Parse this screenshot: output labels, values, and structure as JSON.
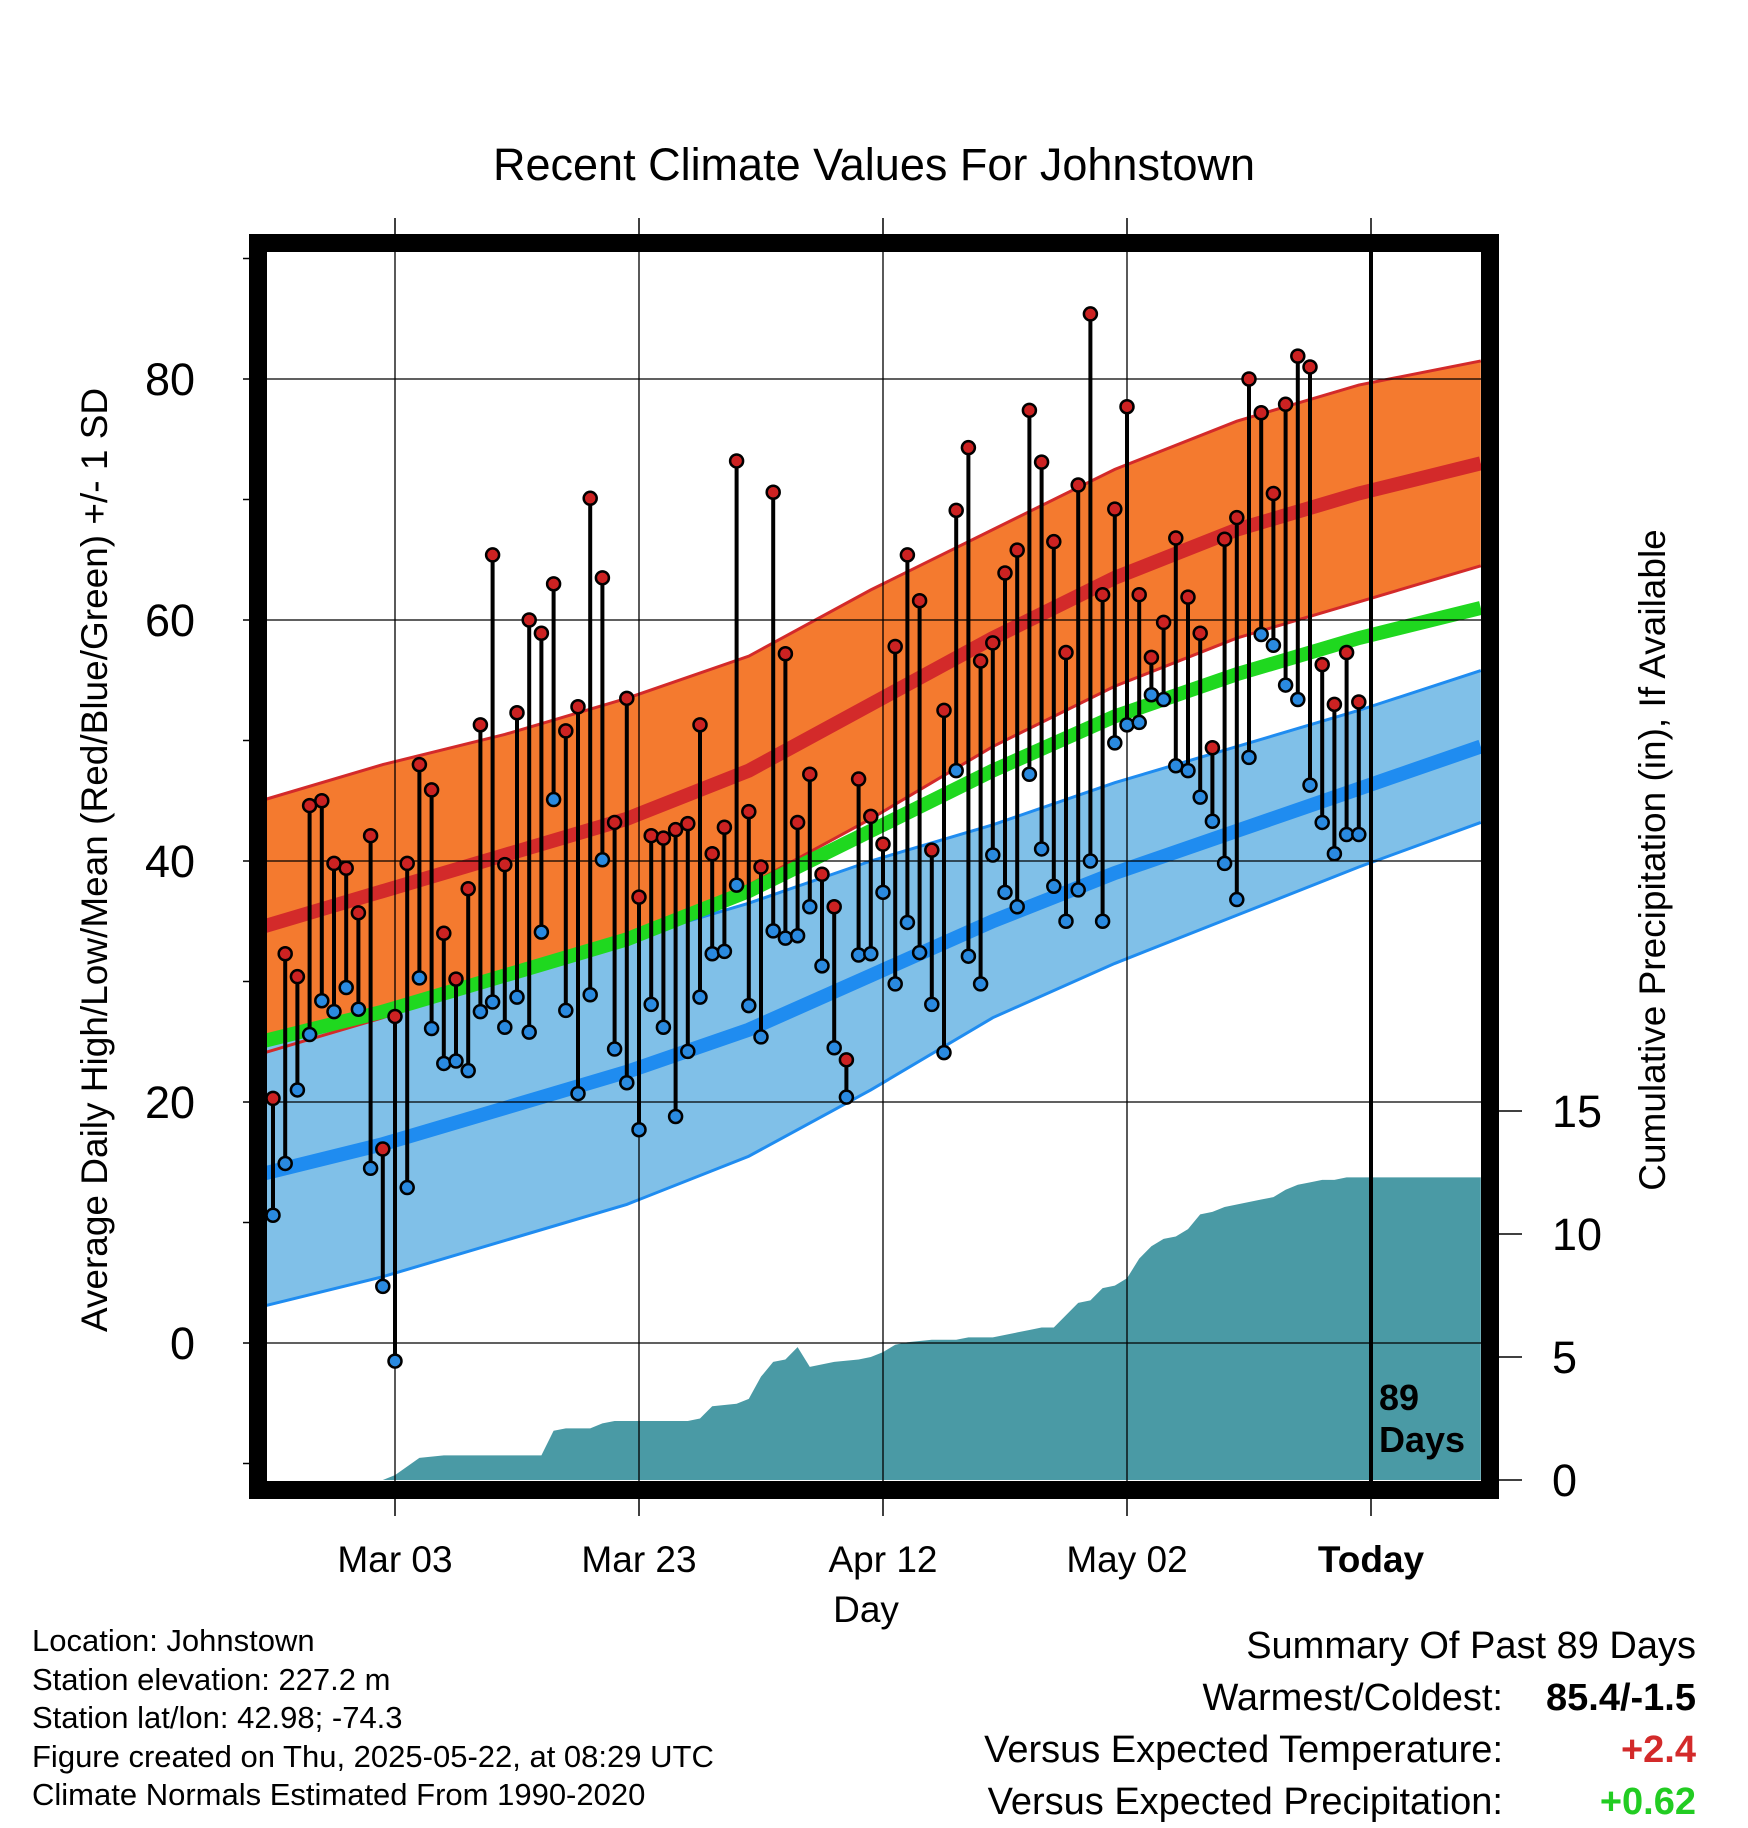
{
  "chart_data": {
    "type": "line",
    "title": "Recent Climate Values For Johnstown",
    "xlabel": "Day",
    "ylabel": "Average Daily High/Low/Mean (Red/Blue/Green) +/- 1 SD",
    "y2label": "Cumulative Precipitation (in), If Available",
    "ylim": [
      -10.5,
      90
    ],
    "y2lim": [
      0,
      45
    ],
    "xlim": [
      -11,
      89
    ],
    "x_ticks": [
      {
        "day": 0,
        "label": "Mar 03"
      },
      {
        "day": 20,
        "label": "Mar 23"
      },
      {
        "day": 40,
        "label": "Apr 12"
      },
      {
        "day": 60,
        "label": "May 02"
      },
      {
        "day": 80,
        "label": "Today"
      }
    ],
    "y_ticks": [
      0,
      20,
      40,
      60,
      80
    ],
    "y2_ticks": [
      0,
      5,
      10,
      15
    ],
    "today_label": [
      "89",
      "Days"
    ],
    "colors": {
      "high_band": "#f47a2f",
      "high_mean": "#d32a2a",
      "high_edge": "#d32a2a",
      "low_band": "#80c0e8",
      "low_mean": "#1f8cf0",
      "low_edge": "#1f8cf0",
      "mean": "#1fd81f",
      "precip": "#4a9aa5",
      "high_point": "#cc2222",
      "low_point": "#2a8ae0",
      "positive": "#d32a2a",
      "precip_anom": "#22cc22"
    },
    "normals": {
      "days": [
        -11,
        -1,
        9,
        19,
        29,
        39,
        49,
        59,
        69,
        79,
        89
      ],
      "high_mean": [
        34.5,
        37.5,
        40.5,
        43.5,
        47.5,
        53.0,
        58.5,
        63.5,
        67.5,
        70.5,
        73.0
      ],
      "high_sd": [
        10.5,
        10.5,
        10.0,
        10.0,
        9.5,
        9.5,
        9.0,
        9.0,
        9.0,
        9.0,
        8.5
      ],
      "low_mean": [
        14.0,
        16.5,
        19.5,
        22.5,
        26.0,
        30.5,
        35.0,
        39.0,
        42.5,
        46.0,
        49.5
      ],
      "low_sd": [
        11.0,
        11.0,
        11.0,
        11.0,
        10.5,
        9.5,
        8.0,
        7.5,
        7.0,
        6.5,
        6.3
      ],
      "mean": [
        25.0,
        27.5,
        30.5,
        33.5,
        37.5,
        42.5,
        47.5,
        52.0,
        55.5,
        58.5,
        61.0
      ]
    },
    "series": [
      {
        "name": "High",
        "x": [
          -10,
          -9,
          -8,
          -7,
          -6,
          -5,
          -4,
          -3,
          -2,
          -1,
          0,
          1,
          2,
          3,
          4,
          5,
          6,
          7,
          8,
          9,
          10,
          11,
          12,
          13,
          14,
          15,
          16,
          17,
          18,
          19,
          20,
          21,
          22,
          23,
          24,
          25,
          26,
          27,
          28,
          29,
          30,
          31,
          32,
          33,
          34,
          35,
          36,
          37,
          38,
          39,
          40,
          41,
          42,
          43,
          44,
          45,
          46,
          47,
          48,
          49,
          50,
          51,
          52,
          53,
          54,
          55,
          56,
          57,
          58,
          59,
          60,
          61,
          62,
          63,
          64,
          65,
          66,
          67,
          68,
          69,
          70,
          71,
          72,
          73,
          74,
          75,
          76,
          77,
          78,
          79
        ],
        "values": [
          20.3,
          32.3,
          30.4,
          44.6,
          45.0,
          39.8,
          39.4,
          35.7,
          42.1,
          16.1,
          27.1,
          39.8,
          48.0,
          45.9,
          34.0,
          30.2,
          37.7,
          51.3,
          65.4,
          39.7,
          52.3,
          60.0,
          58.9,
          63.0,
          50.8,
          52.8,
          70.1,
          63.5,
          43.2,
          53.5,
          37.0,
          42.1,
          41.9,
          42.6,
          43.1,
          51.3,
          40.6,
          42.8,
          73.2,
          44.1,
          39.5,
          70.6,
          57.2,
          43.2,
          47.2,
          38.9,
          36.2,
          23.5,
          46.8,
          43.7,
          41.4,
          57.8,
          65.4,
          61.6,
          40.9,
          52.5,
          69.1,
          74.3,
          56.6,
          58.1,
          63.9,
          65.8,
          77.4,
          73.1,
          66.5,
          57.3,
          71.2,
          85.4,
          62.1,
          69.2,
          77.7,
          62.1,
          56.9,
          59.8,
          66.8,
          61.9,
          58.9,
          49.4,
          66.7,
          68.5,
          80.0,
          77.2,
          70.5,
          77.9,
          81.9,
          81.0,
          56.3,
          53.0,
          57.3,
          53.2
        ]
      },
      {
        "name": "Low",
        "x": [
          -10,
          -9,
          -8,
          -7,
          -6,
          -5,
          -4,
          -3,
          -2,
          -1,
          0,
          1,
          2,
          3,
          4,
          5,
          6,
          7,
          8,
          9,
          10,
          11,
          12,
          13,
          14,
          15,
          16,
          17,
          18,
          19,
          20,
          21,
          22,
          23,
          24,
          25,
          26,
          27,
          28,
          29,
          30,
          31,
          32,
          33,
          34,
          35,
          36,
          37,
          38,
          39,
          40,
          41,
          42,
          43,
          44,
          45,
          46,
          47,
          48,
          49,
          50,
          51,
          52,
          53,
          54,
          55,
          56,
          57,
          58,
          59,
          60,
          61,
          62,
          63,
          64,
          65,
          66,
          67,
          68,
          69,
          70,
          71,
          72,
          73,
          74,
          75,
          76,
          77,
          78,
          79
        ],
        "values": [
          10.6,
          14.9,
          21.0,
          25.6,
          28.4,
          27.5,
          29.5,
          27.7,
          14.5,
          4.7,
          -1.5,
          12.9,
          30.3,
          26.1,
          23.2,
          23.4,
          22.6,
          27.5,
          28.3,
          26.2,
          28.7,
          25.8,
          34.1,
          45.1,
          27.6,
          20.7,
          28.9,
          40.1,
          24.4,
          21.6,
          17.7,
          28.1,
          26.2,
          18.8,
          24.2,
          28.7,
          32.3,
          32.5,
          38.0,
          28.0,
          25.4,
          34.2,
          33.6,
          33.8,
          36.2,
          31.3,
          24.5,
          20.4,
          32.2,
          32.3,
          37.4,
          29.8,
          34.9,
          32.4,
          28.1,
          24.1,
          47.5,
          32.1,
          29.8,
          40.5,
          37.4,
          36.2,
          47.2,
          41.0,
          37.9,
          35.0,
          37.6,
          40.0,
          35.0,
          49.8,
          51.3,
          51.5,
          53.8,
          53.4,
          47.9,
          47.5,
          45.3,
          43.3,
          39.8,
          36.8,
          48.6,
          58.8,
          57.9,
          54.6,
          53.4,
          46.3,
          43.2,
          40.6,
          42.2,
          42.2
        ]
      },
      {
        "name": "Precipitation",
        "x": [
          -10,
          -1,
          0,
          2,
          4,
          6,
          8,
          10,
          12,
          13,
          14,
          16,
          17,
          18,
          20,
          22,
          24,
          25,
          26,
          28,
          29,
          30,
          31,
          32,
          33,
          34,
          36,
          38,
          39,
          40,
          41,
          42,
          44,
          46,
          47,
          49,
          52,
          53,
          54,
          56,
          57,
          58,
          59,
          60,
          61,
          62,
          63,
          64,
          65,
          66,
          67,
          68,
          69,
          70,
          71,
          72,
          73,
          74,
          75,
          76,
          77,
          78,
          79,
          89
        ],
        "values": [
          0.0,
          0.0,
          0.2,
          0.9,
          1.0,
          1.0,
          1.0,
          1.0,
          1.0,
          2.0,
          2.1,
          2.1,
          2.3,
          2.4,
          2.4,
          2.4,
          2.4,
          2.5,
          3.0,
          3.1,
          3.3,
          4.2,
          4.8,
          4.9,
          5.4,
          4.6,
          4.8,
          4.9,
          5.0,
          5.2,
          5.5,
          5.6,
          5.7,
          5.7,
          5.8,
          5.8,
          6.1,
          6.2,
          6.2,
          7.2,
          7.3,
          7.8,
          7.9,
          8.2,
          9.0,
          9.5,
          9.8,
          9.9,
          10.2,
          10.8,
          10.9,
          11.1,
          11.2,
          11.3,
          11.4,
          11.5,
          11.8,
          12.0,
          12.1,
          12.2,
          12.2,
          12.3,
          12.3,
          12.3
        ]
      }
    ]
  },
  "info": {
    "location": "Location: Johnstown",
    "elevation": "Station elevation: 227.2 m",
    "latlon": "Station lat/lon: 42.98; -74.3",
    "created": "Figure created on Thu, 2025-05-22, at 08:29 UTC",
    "normals": "Climate Normals Estimated From 1990-2020"
  },
  "summary": {
    "title": "Summary Of Past 89 Days",
    "warm_cold_label": "Warmest/Coldest:",
    "warm_cold_value": "85.4/-1.5",
    "temp_label": "Versus Expected Temperature:",
    "temp_value": "+2.4",
    "precip_label": "Versus Expected Precipitation:",
    "precip_value": "+0.62"
  }
}
